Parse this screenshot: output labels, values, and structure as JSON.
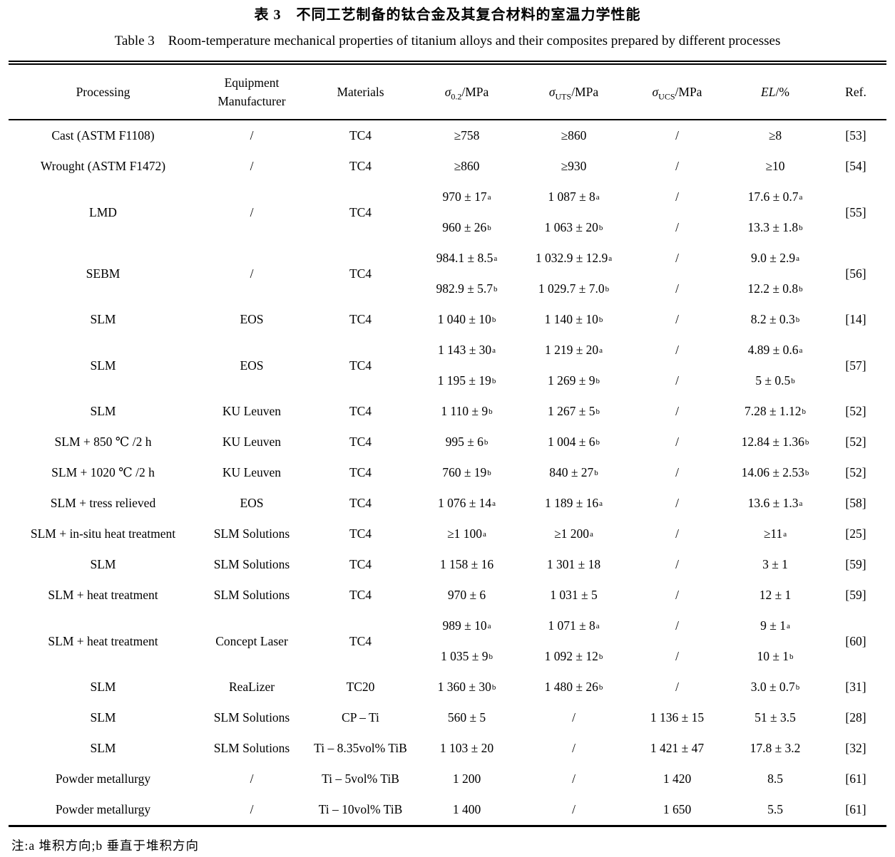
{
  "title_cn": "表 3　不同工艺制备的钛合金及其复合材料的室温力学性能",
  "title_en": "Table 3　Room-temperature mechanical properties of titanium alloys and their composites prepared by different processes",
  "note": "注:a 堆积方向;b 垂直于堆积方向",
  "table": {
    "headers": {
      "processing": "Processing",
      "equipment_line1": "Equipment",
      "equipment_line2": "Manufacturer",
      "materials": "Materials",
      "sigma02": {
        "sym": "σ",
        "sub": "0.2",
        "unit": "/MPa"
      },
      "sigmaUTS": {
        "sym": "σ",
        "sub": "UTS",
        "unit": "/MPa"
      },
      "sigmaUCS": {
        "sym": "σ",
        "sub": "UCS",
        "unit": "/MPa"
      },
      "el": {
        "sym": "EL",
        "unit": "/%"
      },
      "ref": "Ref."
    },
    "rows": [
      {
        "processing": "Cast (ASTM F1108)",
        "equipment": "/",
        "materials": "TC4",
        "s02": [
          {
            "t": "≥758"
          }
        ],
        "uts": [
          {
            "t": "≥860"
          }
        ],
        "ucs": [
          {
            "t": "/"
          }
        ],
        "el": [
          {
            "t": "≥8"
          }
        ],
        "ref": "[53]"
      },
      {
        "processing": "Wrought (ASTM F1472)",
        "equipment": "/",
        "materials": "TC4",
        "s02": [
          {
            "t": "≥860"
          }
        ],
        "uts": [
          {
            "t": "≥930"
          }
        ],
        "ucs": [
          {
            "t": "/"
          }
        ],
        "el": [
          {
            "t": "≥10"
          }
        ],
        "ref": "[54]"
      },
      {
        "processing": "LMD",
        "equipment": "/",
        "materials": "TC4",
        "s02": [
          {
            "t": "970 ± 17",
            "sup": "a"
          },
          {
            "t": "960 ± 26",
            "sup": "b"
          }
        ],
        "uts": [
          {
            "t": "1 087 ± 8",
            "sup": "a"
          },
          {
            "t": "1 063 ± 20",
            "sup": "b"
          }
        ],
        "ucs": [
          {
            "t": "/"
          },
          {
            "t": "/"
          }
        ],
        "el": [
          {
            "t": "17.6 ± 0.7",
            "sup": "a"
          },
          {
            "t": "13.3 ± 1.8",
            "sup": "b"
          }
        ],
        "ref": "[55]"
      },
      {
        "processing": "SEBM",
        "equipment": "/",
        "materials": "TC4",
        "s02": [
          {
            "t": "984.1 ± 8.5",
            "sup": "a"
          },
          {
            "t": "982.9 ± 5.7",
            "sup": "b"
          }
        ],
        "uts": [
          {
            "t": "1 032.9 ± 12.9",
            "sup": "a"
          },
          {
            "t": "1 029.7 ± 7.0",
            "sup": "b"
          }
        ],
        "ucs": [
          {
            "t": "/"
          },
          {
            "t": "/"
          }
        ],
        "el": [
          {
            "t": "9.0 ± 2.9",
            "sup": "a"
          },
          {
            "t": "12.2 ± 0.8",
            "sup": "b"
          }
        ],
        "ref": "[56]"
      },
      {
        "processing": "SLM",
        "equipment": "EOS",
        "materials": "TC4",
        "s02": [
          {
            "t": "1 040 ± 10",
            "sup": "b"
          }
        ],
        "uts": [
          {
            "t": "1 140 ± 10",
            "sup": "b"
          }
        ],
        "ucs": [
          {
            "t": "/"
          }
        ],
        "el": [
          {
            "t": "8.2 ± 0.3",
            "sup": "b"
          }
        ],
        "ref": "[14]"
      },
      {
        "processing": "SLM",
        "equipment": "EOS",
        "materials": "TC4",
        "s02": [
          {
            "t": "1 143 ± 30",
            "sup": "a"
          },
          {
            "t": "1 195 ± 19",
            "sup": "b"
          }
        ],
        "uts": [
          {
            "t": "1 219 ± 20",
            "sup": "a"
          },
          {
            "t": "1 269 ± 9",
            "sup": "b"
          }
        ],
        "ucs": [
          {
            "t": "/"
          },
          {
            "t": "/"
          }
        ],
        "el": [
          {
            "t": "4.89 ± 0.6",
            "sup": "a"
          },
          {
            "t": "5 ± 0.5",
            "sup": "b"
          }
        ],
        "ref": "[57]"
      },
      {
        "processing": "SLM",
        "equipment": "KU Leuven",
        "materials": "TC4",
        "s02": [
          {
            "t": "1 110 ± 9",
            "sup": "b"
          }
        ],
        "uts": [
          {
            "t": "1 267 ± 5",
            "sup": "b"
          }
        ],
        "ucs": [
          {
            "t": "/"
          }
        ],
        "el": [
          {
            "t": "7.28 ± 1.12",
            "sup": "b"
          }
        ],
        "ref": "[52]"
      },
      {
        "processing": "SLM + 850 ℃ /2 h",
        "equipment": "KU Leuven",
        "materials": "TC4",
        "s02": [
          {
            "t": "995 ± 6",
            "sup": "b"
          }
        ],
        "uts": [
          {
            "t": "1 004 ± 6",
            "sup": "b"
          }
        ],
        "ucs": [
          {
            "t": "/"
          }
        ],
        "el": [
          {
            "t": "12.84 ± 1.36",
            "sup": "b"
          }
        ],
        "ref": "[52]"
      },
      {
        "processing": "SLM + 1020 ℃ /2 h",
        "equipment": "KU Leuven",
        "materials": "TC4",
        "s02": [
          {
            "t": "760 ± 19",
            "sup": "b"
          }
        ],
        "uts": [
          {
            "t": "840 ± 27",
            "sup": "b"
          }
        ],
        "ucs": [
          {
            "t": "/"
          }
        ],
        "el": [
          {
            "t": "14.06 ± 2.53",
            "sup": "b"
          }
        ],
        "ref": "[52]"
      },
      {
        "processing": "SLM + tress relieved",
        "equipment": "EOS",
        "materials": "TC4",
        "s02": [
          {
            "t": "1 076 ± 14",
            "sup": "a"
          }
        ],
        "uts": [
          {
            "t": "1 189 ± 16",
            "sup": "a"
          }
        ],
        "ucs": [
          {
            "t": "/"
          }
        ],
        "el": [
          {
            "t": "13.6 ± 1.3",
            "sup": "a"
          }
        ],
        "ref": "[58]"
      },
      {
        "processing": "SLM + in-situ heat treatment",
        "equipment": "SLM Solutions",
        "materials": "TC4",
        "s02": [
          {
            "t": "≥1 100",
            "sup": "a"
          }
        ],
        "uts": [
          {
            "t": "≥1 200",
            "sup": "a"
          }
        ],
        "ucs": [
          {
            "t": "/"
          }
        ],
        "el": [
          {
            "t": "≥11",
            "sup": "a"
          }
        ],
        "ref": "[25]"
      },
      {
        "processing": "SLM",
        "equipment": "SLM Solutions",
        "materials": "TC4",
        "s02": [
          {
            "t": "1 158 ± 16"
          }
        ],
        "uts": [
          {
            "t": "1 301 ± 18"
          }
        ],
        "ucs": [
          {
            "t": "/"
          }
        ],
        "el": [
          {
            "t": "3 ± 1"
          }
        ],
        "ref": "[59]"
      },
      {
        "processing": "SLM + heat treatment",
        "equipment": "SLM Solutions",
        "materials": "TC4",
        "s02": [
          {
            "t": "970 ± 6"
          }
        ],
        "uts": [
          {
            "t": "1 031 ± 5"
          }
        ],
        "ucs": [
          {
            "t": "/"
          }
        ],
        "el": [
          {
            "t": "12 ± 1"
          }
        ],
        "ref": "[59]"
      },
      {
        "processing": "SLM + heat treatment",
        "equipment": "Concept Laser",
        "materials": "TC4",
        "s02": [
          {
            "t": "989 ± 10",
            "sup": "a"
          },
          {
            "t": "1 035 ± 9",
            "sup": "b"
          }
        ],
        "uts": [
          {
            "t": "1 071 ± 8",
            "sup": "a"
          },
          {
            "t": "1 092 ± 12",
            "sup": "b"
          }
        ],
        "ucs": [
          {
            "t": "/"
          },
          {
            "t": "/"
          }
        ],
        "el": [
          {
            "t": "9 ± 1",
            "sup": "a"
          },
          {
            "t": "10 ± 1",
            "sup": "b"
          }
        ],
        "ref": "[60]"
      },
      {
        "processing": "SLM",
        "equipment": "ReaLizer",
        "materials": "TC20",
        "s02": [
          {
            "t": "1 360 ± 30",
            "sup": "b"
          }
        ],
        "uts": [
          {
            "t": "1 480 ± 26",
            "sup": "b"
          }
        ],
        "ucs": [
          {
            "t": "/"
          }
        ],
        "el": [
          {
            "t": "3.0 ± 0.7",
            "sup": "b"
          }
        ],
        "ref": "[31]"
      },
      {
        "processing": "SLM",
        "equipment": "SLM Solutions",
        "materials": "CP – Ti",
        "s02": [
          {
            "t": "560 ± 5"
          }
        ],
        "uts": [
          {
            "t": "/"
          }
        ],
        "ucs": [
          {
            "t": "1 136 ± 15"
          }
        ],
        "el": [
          {
            "t": "51 ± 3.5"
          }
        ],
        "ref": "[28]"
      },
      {
        "processing": "SLM",
        "equipment": "SLM Solutions",
        "materials": "Ti – 8.35vol% TiB",
        "s02": [
          {
            "t": "1 103 ± 20"
          }
        ],
        "uts": [
          {
            "t": "/"
          }
        ],
        "ucs": [
          {
            "t": "1 421 ± 47"
          }
        ],
        "el": [
          {
            "t": "17.8 ± 3.2"
          }
        ],
        "ref": "[32]"
      },
      {
        "processing": "Powder metallurgy",
        "equipment": "/",
        "materials": "Ti – 5vol% TiB",
        "s02": [
          {
            "t": "1 200"
          }
        ],
        "uts": [
          {
            "t": "/"
          }
        ],
        "ucs": [
          {
            "t": "1 420"
          }
        ],
        "el": [
          {
            "t": "8.5"
          }
        ],
        "ref": "[61]"
      },
      {
        "processing": "Powder metallurgy",
        "equipment": "/",
        "materials": "Ti – 10vol% TiB",
        "s02": [
          {
            "t": "1 400"
          }
        ],
        "uts": [
          {
            "t": "/"
          }
        ],
        "ucs": [
          {
            "t": "1 650"
          }
        ],
        "el": [
          {
            "t": "5.5"
          }
        ],
        "ref": "[61]"
      }
    ]
  }
}
